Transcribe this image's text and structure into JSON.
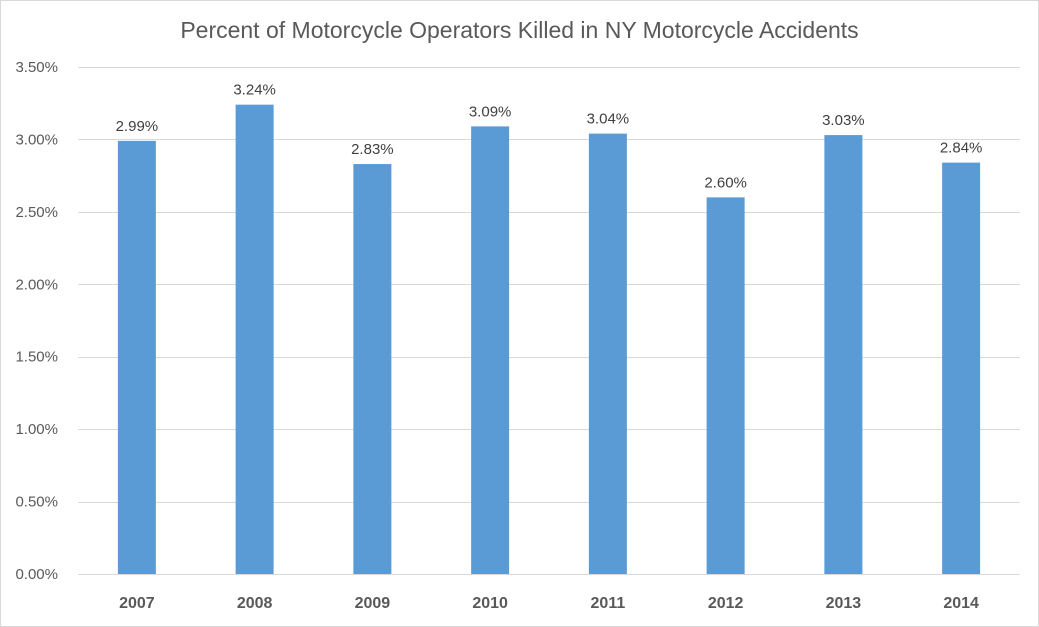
{
  "chart_data": {
    "type": "bar",
    "title": "Percent of Motorcycle Operators Killed in NY Motorcycle Accidents",
    "categories": [
      "2007",
      "2008",
      "2009",
      "2010",
      "2011",
      "2012",
      "2013",
      "2014"
    ],
    "values": [
      2.99,
      3.24,
      2.83,
      3.09,
      3.04,
      2.6,
      3.03,
      2.84
    ],
    "data_labels": [
      "2.99%",
      "3.24%",
      "2.83%",
      "3.09%",
      "3.04%",
      "2.60%",
      "3.03%",
      "2.84%"
    ],
    "y_ticks": [
      0,
      0.5,
      1.0,
      1.5,
      2.0,
      2.5,
      3.0,
      3.5
    ],
    "y_tick_labels": [
      "0.00%",
      "0.50%",
      "1.00%",
      "1.50%",
      "2.00%",
      "2.50%",
      "3.00%",
      "3.50%"
    ],
    "ylim": [
      0,
      3.5
    ],
    "xlabel": "",
    "ylabel": "",
    "grid": true,
    "legend": "none",
    "bar_color": "#5b9bd5",
    "grid_color": "#d9d9d9"
  }
}
